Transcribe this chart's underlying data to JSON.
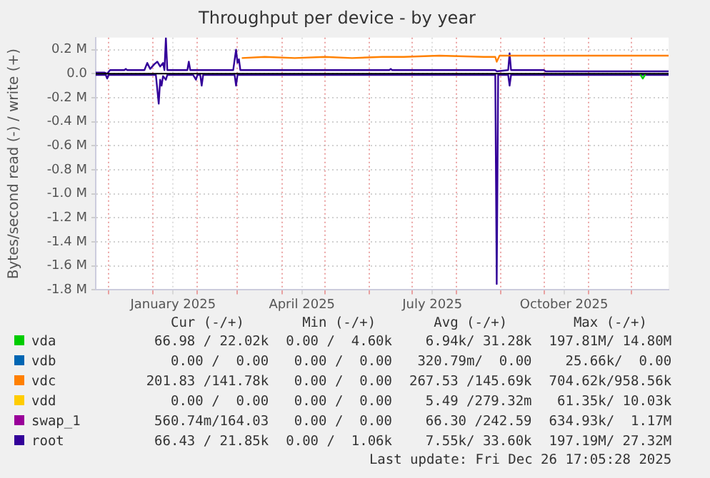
{
  "chart_data": {
    "type": "line",
    "title": "Throughput per device - by year",
    "ylabel": "Bytes/second read (-) / write (+)",
    "xlim": [
      "2024-11-22",
      "2025-12-27"
    ],
    "xticks": [
      {
        "value": "2024-12-01",
        "label": null
      },
      {
        "value": "2025-01-01",
        "label": null
      },
      {
        "value": "2025-01-15",
        "label": "January 2025"
      },
      {
        "value": "2025-02-01",
        "label": null
      },
      {
        "value": "2025-03-01",
        "label": null
      },
      {
        "value": "2025-04-01",
        "label": null
      },
      {
        "value": "2025-04-15",
        "label": "April 2025"
      },
      {
        "value": "2025-05-01",
        "label": null
      },
      {
        "value": "2025-06-01",
        "label": null
      },
      {
        "value": "2025-07-01",
        "label": null
      },
      {
        "value": "2025-07-15",
        "label": "July 2025"
      },
      {
        "value": "2025-08-01",
        "label": null
      },
      {
        "value": "2025-09-01",
        "label": null
      },
      {
        "value": "2025-10-01",
        "label": null
      },
      {
        "value": "2025-10-15",
        "label": "October 2025"
      },
      {
        "value": "2025-11-01",
        "label": null
      },
      {
        "value": "2025-12-01",
        "label": null
      }
    ],
    "ylim": [
      -1.8,
      0.3
    ],
    "yticks": [
      {
        "value": -1.8,
        "label": "-1.8 M"
      },
      {
        "value": -1.6,
        "label": "-1.6 M"
      },
      {
        "value": -1.4,
        "label": "-1.4 M"
      },
      {
        "value": -1.2,
        "label": "-1.2 M"
      },
      {
        "value": -1.0,
        "label": "-1.0 M"
      },
      {
        "value": -0.8,
        "label": "-0.8 M"
      },
      {
        "value": -0.6,
        "label": "-0.6 M"
      },
      {
        "value": -0.4,
        "label": "-0.4 M"
      },
      {
        "value": -0.2,
        "label": "-0.2 M"
      },
      {
        "value": 0.0,
        "label": "0.0"
      },
      {
        "value": 0.2,
        "label": "0.2 M"
      }
    ],
    "grid": true,
    "legend": "bottom",
    "marker": "none",
    "line_style": "solid",
    "ref_lines": [
      {
        "axis": "y",
        "value": 0,
        "color": "#000000"
      }
    ],
    "series": [
      {
        "name": "vda",
        "color": "#00cc00",
        "x": [
          "2025-12-07",
          "2025-12-09",
          "2025-12-11"
        ],
        "values": [
          0,
          -0.04,
          0
        ]
      },
      {
        "name": "vdb",
        "color": "#0066b3"
      },
      {
        "name": "vdc",
        "color": "#ff8000",
        "x": [
          "2025-03-04",
          "2025-03-20",
          "2025-04-10",
          "2025-05-01",
          "2025-05-20",
          "2025-06-10",
          "2025-06-25",
          "2025-07-20",
          "2025-08-20",
          "2025-08-28",
          "2025-08-29",
          "2025-08-31",
          "2025-12-27"
        ],
        "values": [
          0.13,
          0.14,
          0.13,
          0.14,
          0.13,
          0.14,
          0.14,
          0.15,
          0.14,
          0.14,
          0.1,
          0.15,
          0.15
        ]
      },
      {
        "name": "vdd",
        "color": "#ffcc00"
      },
      {
        "name": "swap_1",
        "color": "#990099"
      },
      {
        "name": "root",
        "color": "#330099",
        "x": [
          "2024-11-22",
          "2024-11-28",
          "2024-11-30",
          "2024-12-02",
          "2024-12-12",
          "2024-12-13",
          "2024-12-14",
          "2024-12-26",
          "2024-12-28",
          "2024-12-30",
          "2025-01-02",
          "2025-01-04",
          "2025-01-06",
          "2025-01-08",
          "2025-01-09",
          "2025-01-10",
          "2025-01-11",
          "2025-01-25",
          "2025-01-26",
          "2025-01-27",
          "2025-02-26",
          "2025-02-28",
          "2025-03-01",
          "2025-03-02",
          "2025-03-03",
          "2025-06-15",
          "2025-06-16",
          "2025-06-17",
          "2025-08-28",
          "2025-08-29",
          "2025-09-06",
          "2025-09-07",
          "2025-09-08",
          "2025-10-01",
          "2025-10-02",
          "2025-12-27"
        ],
        "values": [
          0.01,
          0.01,
          0.0,
          0.03,
          0.03,
          0.04,
          0.03,
          0.03,
          0.09,
          0.04,
          0.08,
          0.1,
          0.06,
          0.09,
          0.03,
          0.3,
          0.03,
          0.03,
          0.1,
          0.03,
          0.03,
          0.2,
          0.09,
          0.12,
          0.03,
          0.03,
          0.04,
          0.03,
          0.03,
          0.02,
          0.03,
          0.17,
          0.03,
          0.03,
          0.02,
          0.02
        ]
      },
      {
        "color": "#330099",
        "x": [
          "2024-11-22",
          "2024-11-29",
          "2024-11-30",
          "2024-12-01",
          "2025-01-03",
          "2025-01-05",
          "2025-01-06",
          "2025-01-07",
          "2025-01-08",
          "2025-01-10",
          "2025-01-11",
          "2025-01-29",
          "2025-01-31",
          "2025-02-01",
          "2025-02-03",
          "2025-02-04",
          "2025-02-05",
          "2025-02-27",
          "2025-02-28",
          "2025-03-01",
          "2025-08-28",
          "2025-08-29",
          "2025-08-30",
          "2025-09-06",
          "2025-09-07",
          "2025-09-08",
          "2025-12-27"
        ],
        "values": [
          -0.01,
          -0.01,
          -0.04,
          -0.01,
          -0.01,
          -0.25,
          -0.05,
          -0.1,
          -0.02,
          -0.05,
          -0.01,
          -0.01,
          -0.05,
          -0.01,
          -0.01,
          -0.1,
          -0.01,
          -0.01,
          -0.1,
          -0.01,
          -0.01,
          -1.75,
          -0.01,
          -0.01,
          -0.1,
          -0.01,
          -0.01
        ]
      }
    ],
    "annotations": [
      "Cur (-/+)",
      "Min (-/+)",
      "Avg (-/+)",
      "Max (-/+)",
      "66.98 / 22.02k",
      "0.00 /  4.60k",
      "6.94k/ 31.28k",
      "197.81M/ 14.80M",
      "0.00 /  0.00",
      "0.00 /  0.00",
      "320.79m/  0.00",
      "25.66k/  0.00",
      "201.83 /141.78k",
      "0.00 /  0.00",
      "267.53 /145.69k",
      "704.62k/958.56k",
      "0.00 /  0.00",
      "0.00 /  0.00",
      "5.49 /279.32m",
      "61.35k/ 10.03k",
      "560.74m/164.03",
      "0.00 /  0.00",
      "66.30 /242.59",
      "634.93k/  1.17M",
      "66.43 / 21.85k",
      "0.00 /  1.06k",
      "7.55k/ 33.60k",
      "197.19M/ 27.32M",
      "Last update: Fri Dec 26 17:05:28 2025"
    ]
  }
}
